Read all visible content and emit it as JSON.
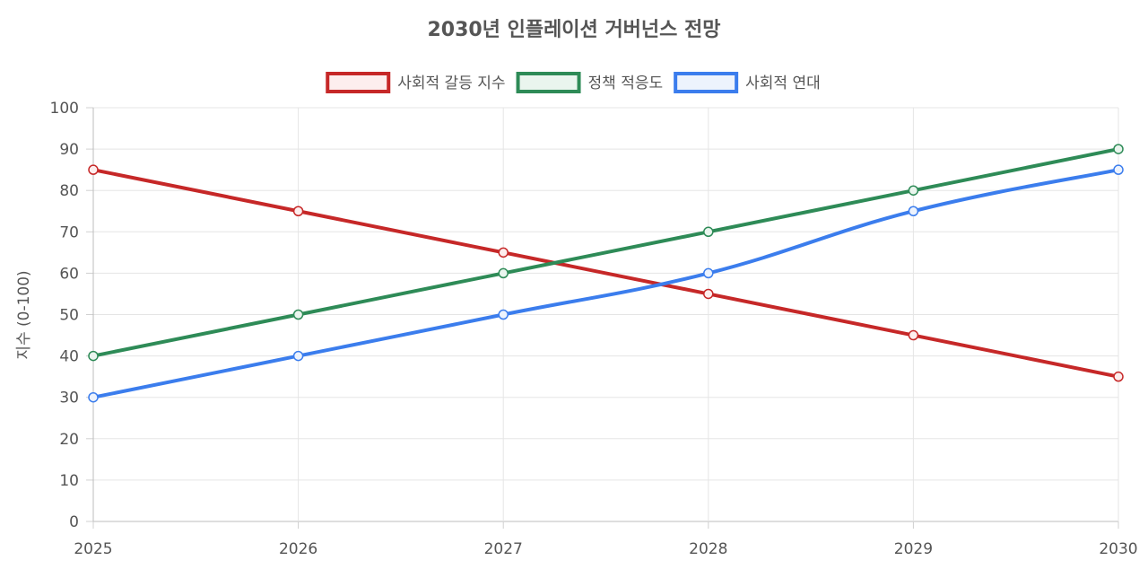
{
  "chart_data": {
    "type": "line",
    "title": "2030년 인플레이션 거버넌스 전망",
    "xlabel": "",
    "ylabel": "지수 (0-100)",
    "categories": [
      "2025",
      "2026",
      "2027",
      "2028",
      "2029",
      "2030"
    ],
    "ylim": [
      0,
      100
    ],
    "yticks": [
      "0",
      "10",
      "20",
      "30",
      "40",
      "50",
      "60",
      "70",
      "80",
      "90",
      "100"
    ],
    "grid": true,
    "legend_position": "top",
    "series": [
      {
        "name": "사회적 갈등 지수",
        "values": [
          85,
          75,
          65,
          55,
          45,
          35
        ],
        "color": "#c62828",
        "fill": "#fdeeee"
      },
      {
        "name": "정책 적응도",
        "values": [
          40,
          50,
          60,
          70,
          80,
          90
        ],
        "color": "#2e8b57",
        "fill": "#eaf5ee"
      },
      {
        "name": "사회적 연대",
        "values": [
          30,
          40,
          50,
          60,
          75,
          85
        ],
        "color": "#3b7ded",
        "fill": "#edf3fd"
      }
    ]
  }
}
